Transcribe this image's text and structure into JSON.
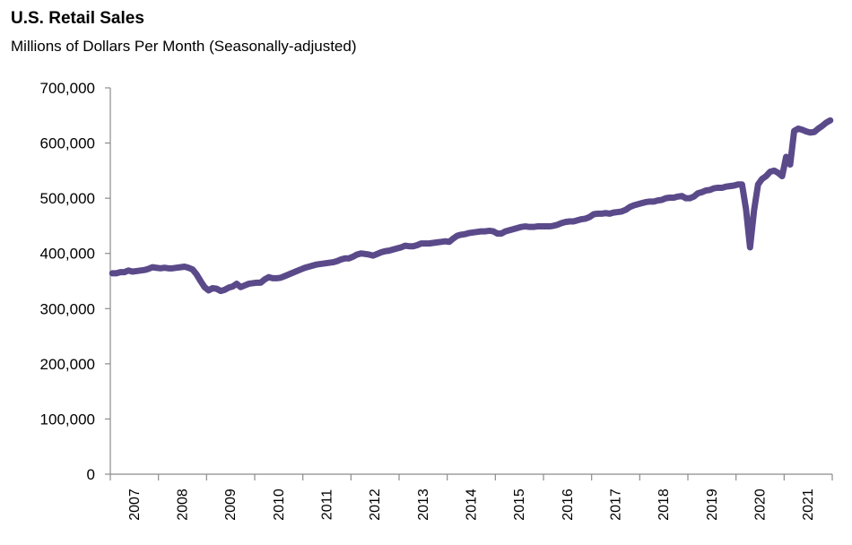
{
  "chart_data": {
    "type": "line",
    "title": "U.S. Retail Sales",
    "subtitle": "Millions of Dollars Per Month (Seasonally-adjusted)",
    "ylim": [
      0,
      700000
    ],
    "yticks": [
      0,
      100000,
      200000,
      300000,
      400000,
      500000,
      600000,
      700000
    ],
    "ytick_labels": [
      "0",
      "100,000",
      "200,000",
      "300,000",
      "400,000",
      "500,000",
      "600,000",
      "700,000"
    ],
    "xtick_labels": [
      "2007",
      "2008",
      "2009",
      "2010",
      "2011",
      "2012",
      "2013",
      "2014",
      "2015",
      "2016",
      "2017",
      "2018",
      "2019",
      "2020",
      "2021"
    ],
    "grid": false,
    "line_color": "#5b4a8a",
    "series": [
      {
        "x": [
          "2007-01",
          "2007-02",
          "2007-03",
          "2007-04",
          "2007-05",
          "2007-06",
          "2007-07",
          "2007-08",
          "2007-09",
          "2007-10",
          "2007-11",
          "2007-12",
          "2008-01",
          "2008-02",
          "2008-03",
          "2008-04",
          "2008-05",
          "2008-06",
          "2008-07",
          "2008-08",
          "2008-09",
          "2008-10",
          "2008-11",
          "2008-12",
          "2009-01",
          "2009-02",
          "2009-03",
          "2009-04",
          "2009-05",
          "2009-06",
          "2009-07",
          "2009-08",
          "2009-09",
          "2009-10",
          "2009-11",
          "2009-12",
          "2010-01",
          "2010-02",
          "2010-03",
          "2010-04",
          "2010-05",
          "2010-06",
          "2010-07",
          "2010-08",
          "2010-09",
          "2010-10",
          "2010-11",
          "2010-12",
          "2011-01",
          "2011-02",
          "2011-03",
          "2011-04",
          "2011-05",
          "2011-06",
          "2011-07",
          "2011-08",
          "2011-09",
          "2011-10",
          "2011-11",
          "2011-12",
          "2012-01",
          "2012-02",
          "2012-03",
          "2012-04",
          "2012-05",
          "2012-06",
          "2012-07",
          "2012-08",
          "2012-09",
          "2012-10",
          "2012-11",
          "2012-12",
          "2013-01",
          "2013-02",
          "2013-03",
          "2013-04",
          "2013-05",
          "2013-06",
          "2013-07",
          "2013-08",
          "2013-09",
          "2013-10",
          "2013-11",
          "2013-12",
          "2014-01",
          "2014-02",
          "2014-03",
          "2014-04",
          "2014-05",
          "2014-06",
          "2014-07",
          "2014-08",
          "2014-09",
          "2014-10",
          "2014-11",
          "2014-12",
          "2015-01",
          "2015-02",
          "2015-03",
          "2015-04",
          "2015-05",
          "2015-06",
          "2015-07",
          "2015-08",
          "2015-09",
          "2015-10",
          "2015-11",
          "2015-12",
          "2016-01",
          "2016-02",
          "2016-03",
          "2016-04",
          "2016-05",
          "2016-06",
          "2016-07",
          "2016-08",
          "2016-09",
          "2016-10",
          "2016-11",
          "2016-12",
          "2017-01",
          "2017-02",
          "2017-03",
          "2017-04",
          "2017-05",
          "2017-06",
          "2017-07",
          "2017-08",
          "2017-09",
          "2017-10",
          "2017-11",
          "2017-12",
          "2018-01",
          "2018-02",
          "2018-03",
          "2018-04",
          "2018-05",
          "2018-06",
          "2018-07",
          "2018-08",
          "2018-09",
          "2018-10",
          "2018-11",
          "2018-12",
          "2019-01",
          "2019-02",
          "2019-03",
          "2019-04",
          "2019-05",
          "2019-06",
          "2019-07",
          "2019-08",
          "2019-09",
          "2019-10",
          "2019-11",
          "2019-12",
          "2020-01",
          "2020-02",
          "2020-03",
          "2020-04",
          "2020-05",
          "2020-06",
          "2020-07",
          "2020-08",
          "2020-09",
          "2020-10",
          "2020-11",
          "2020-12",
          "2021-01",
          "2021-02",
          "2021-03",
          "2021-04",
          "2021-05",
          "2021-06",
          "2021-07",
          "2021-08",
          "2021-09",
          "2021-10",
          "2021-11",
          "2021-12"
        ],
        "values": [
          364000,
          364000,
          366000,
          366000,
          369000,
          367000,
          368000,
          369000,
          370000,
          372000,
          375000,
          374000,
          373000,
          374000,
          373000,
          373000,
          374000,
          375000,
          376000,
          374000,
          371000,
          362000,
          350000,
          339000,
          333000,
          337000,
          336000,
          332000,
          334000,
          338000,
          340000,
          345000,
          339000,
          342000,
          345000,
          346000,
          347000,
          347000,
          353000,
          357000,
          355000,
          355000,
          356000,
          359000,
          362000,
          365000,
          368000,
          371000,
          374000,
          376000,
          378000,
          380000,
          381000,
          382000,
          383000,
          384000,
          386000,
          389000,
          391000,
          391000,
          394000,
          398000,
          400000,
          399000,
          398000,
          396000,
          399000,
          402000,
          404000,
          405000,
          407000,
          409000,
          411000,
          414000,
          413000,
          413000,
          415000,
          418000,
          418000,
          418000,
          419000,
          420000,
          421000,
          422000,
          421000,
          427000,
          432000,
          434000,
          435000,
          437000,
          438000,
          439000,
          440000,
          440000,
          441000,
          440000,
          436000,
          436000,
          440000,
          442000,
          444000,
          446000,
          448000,
          449000,
          448000,
          448000,
          449000,
          449000,
          449000,
          449000,
          450000,
          452000,
          455000,
          457000,
          458000,
          458000,
          460000,
          462000,
          463000,
          466000,
          471000,
          472000,
          472000,
          473000,
          472000,
          474000,
          475000,
          476000,
          479000,
          484000,
          487000,
          489000,
          491000,
          493000,
          494000,
          494000,
          496000,
          497000,
          500000,
          501000,
          501000,
          503000,
          504000,
          500000,
          500000,
          503000,
          509000,
          511000,
          514000,
          515000,
          518000,
          519000,
          519000,
          521000,
          522000,
          523000,
          525000,
          525000,
          480000,
          411000,
          478000,
          525000,
          535000,
          540000,
          548000,
          550000,
          546000,
          540000,
          575000,
          561000,
          622000,
          626000,
          624000,
          621000,
          619000,
          620000,
          626000,
          631000,
          637000,
          641000
        ]
      }
    ]
  }
}
